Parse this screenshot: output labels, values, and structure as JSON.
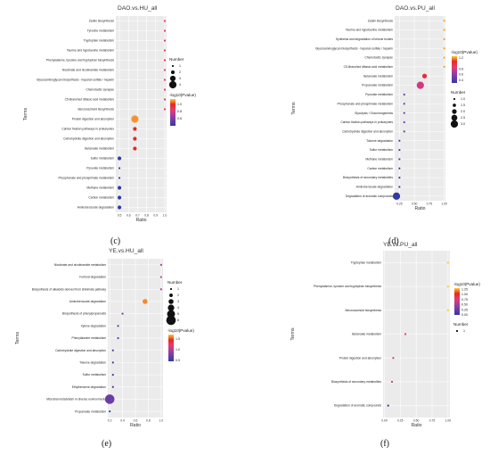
{
  "panel_letters": [
    "(c)",
    "(d)",
    "(e)",
    "(f)"
  ],
  "chart_data": [
    {
      "type": "scatter",
      "title": "DAO.vs.HU_all",
      "xlabel": "Ratio",
      "ylabel": "Terms",
      "xlim": [
        0.46,
        1.02
      ],
      "xticks": [
        "0.5",
        "0.6",
        "0.7",
        "0.8",
        "0.9",
        "1.0"
      ],
      "xtick_values": [
        0.5,
        0.6,
        0.7,
        0.8,
        0.9,
        1.0
      ],
      "terms": [
        "Zeatin biosynthesis",
        "Tyrosine metabolism",
        "Tryptophan metabolism",
        "Taurine and hypotaurine metabolism",
        "Phenylalanine, tyrosine and tryptophan biosynthesis",
        "Nicotinate and nicotinamide metabolism",
        "Glycosaminoglycan biosynthesis - heparan sulfate / heparin",
        "Chemotactic synapse",
        "C5-Branched dibasic acid metabolism",
        "Benzoxazinoid biosynthesis",
        "Protein digestion and absorption",
        "Carbon fixation pathways in prokaryotes",
        "Carbohydrate digestion and absorption",
        "Butanoate metabolism",
        "Sulfur metabolism",
        "Pyruvate metabolism",
        "Phosphonate and phosphinate metabolism",
        "Methane metabolism",
        "Carbon metabolism",
        "Aminobenzoate degradation"
      ],
      "ratio": [
        1.0,
        1.0,
        1.0,
        1.0,
        1.0,
        1.0,
        1.0,
        1.0,
        1.0,
        1.0,
        0.67,
        0.67,
        0.67,
        0.67,
        0.5,
        0.5,
        0.5,
        0.5,
        0.5,
        0.5
      ],
      "number": [
        1,
        1,
        1,
        1,
        1,
        1,
        1,
        1,
        1,
        1,
        4,
        2,
        2,
        2,
        2,
        1,
        1,
        2,
        2,
        2
      ],
      "neglog10p": [
        0.9,
        0.9,
        0.9,
        0.9,
        0.9,
        0.9,
        0.9,
        0.9,
        0.9,
        0.9,
        1.1,
        1.0,
        1.0,
        1.0,
        0.4,
        0.4,
        0.4,
        0.4,
        0.4,
        0.4
      ],
      "color_legend": {
        "title": "-log10(Pvalue)",
        "ticks": [
          "1.0",
          "0.8",
          "0.6"
        ],
        "tick_values": [
          1.0,
          0.8,
          0.6
        ],
        "range": [
          0.4,
          1.15
        ]
      },
      "size_legend": {
        "title": "Number",
        "labels": [
          "1",
          "2",
          "3",
          "4"
        ],
        "values": [
          1,
          2,
          3,
          4
        ],
        "order": "above-color"
      }
    },
    {
      "type": "scatter",
      "title": "DAO.vs.PU_all",
      "xlabel": "Ratio",
      "ylabel": "Terms",
      "xlim": [
        0.17,
        1.02
      ],
      "xticks": [
        "0.25",
        "0.50",
        "0.75",
        "1.00"
      ],
      "xtick_values": [
        0.25,
        0.5,
        0.75,
        1.0
      ],
      "terms": [
        "Zeatin biosynthesis",
        "Taurine and hypotaurine metabolism",
        "Synthesis and degradation of ketone bodies",
        "Glycosaminoglycan biosynthesis - heparan sulfate / heparin",
        "Chemotactic synapse",
        "C5-Branched dibasic acid metabolism",
        "Butanoate metabolism",
        "Propanoate metabolism",
        "Pyruvate metabolism",
        "Phosphonate and phosphinate metabolism",
        "Glycolysis / Gluconeogenesis",
        "Carbon fixation pathways in prokaryotes",
        "Carbohydrate digestion and absorption",
        "Toluene degradation",
        "Sulfur metabolism",
        "Methane metabolism",
        "Carbon metabolism",
        "Biosynthesis of secondary metabolites",
        "Aminobenzoate degradation",
        "Degradation of aromatic compounds"
      ],
      "ratio": [
        1.0,
        1.0,
        1.0,
        1.0,
        1.0,
        1.0,
        0.67,
        0.6,
        0.33,
        0.33,
        0.33,
        0.33,
        0.33,
        0.25,
        0.25,
        0.25,
        0.25,
        0.25,
        0.25,
        0.2
      ],
      "number": [
        1,
        1,
        1,
        1,
        1,
        1,
        2,
        3,
        1,
        1,
        1,
        1,
        1,
        1,
        1,
        1,
        1,
        1,
        1,
        3
      ],
      "neglog10p": [
        1.2,
        1.2,
        1.2,
        1.2,
        1.2,
        1.2,
        1.0,
        0.8,
        0.5,
        0.5,
        0.5,
        0.5,
        0.5,
        0.4,
        0.4,
        0.4,
        0.4,
        0.4,
        0.4,
        0.3
      ],
      "color_legend": {
        "title": "-log10(Pvalue)",
        "ticks": [
          "1.2",
          "0.8",
          "0.6",
          "0.4"
        ],
        "tick_values": [
          1.2,
          0.8,
          0.6,
          0.4
        ],
        "range": [
          0.3,
          1.25
        ]
      },
      "size_legend": {
        "title": "Number",
        "labels": [
          "1.0",
          "1.5",
          "2.0",
          "2.5",
          "3.0"
        ],
        "values": [
          1.0,
          1.5,
          2.0,
          2.5,
          3.0
        ],
        "order": "below-color"
      }
    },
    {
      "type": "scatter",
      "title": "YE.vs.HU_all",
      "xlabel": "Ratio",
      "ylabel": "Terms",
      "xlim": [
        0.17,
        1.03
      ],
      "xticks": [
        "0.2",
        "0.4",
        "0.6",
        "0.8",
        "1.0"
      ],
      "xtick_values": [
        0.2,
        0.4,
        0.6,
        0.8,
        1.0
      ],
      "terms": [
        "Nicotinate and nicotinamide metabolism",
        "Furfural degradation",
        "Biosynthesis of alkaloids derived from shikimate pathway",
        "Aminobenzoate degradation",
        "Biosynthesis of phenylpropanoids",
        "Xylene degradation",
        "Phenylalanine metabolism",
        "Carbohydrate digestion and absorption",
        "Toluene degradation",
        "Sulfur metabolism",
        "Ethylbenzene degradation",
        "Microbial metabolism in diverse environments",
        "Propanoate metabolism"
      ],
      "ratio": [
        1.0,
        1.0,
        1.0,
        0.75,
        0.4,
        0.33,
        0.33,
        0.25,
        0.25,
        0.25,
        0.25,
        0.2,
        0.2
      ],
      "number": [
        1,
        1,
        1,
        3,
        1,
        1,
        1,
        1,
        1,
        1,
        1,
        6,
        1
      ],
      "neglog10p": [
        1.0,
        1.0,
        1.0,
        1.6,
        0.8,
        0.6,
        0.6,
        0.5,
        0.5,
        0.5,
        0.5,
        0.7,
        0.5
      ],
      "color_legend": {
        "title": "-log10(Pvalue)",
        "ticks": [
          "1.5",
          "1.0",
          "0.5"
        ],
        "tick_values": [
          1.5,
          1.0,
          0.5
        ],
        "range": [
          0.45,
          1.7
        ]
      },
      "size_legend": {
        "title": "Number",
        "labels": [
          "1",
          "2",
          "3",
          "4",
          "5",
          "6"
        ],
        "values": [
          1,
          2,
          3,
          4,
          5,
          6
        ],
        "order": "above-color"
      }
    },
    {
      "type": "scatter",
      "title": "YE.vs.PU_all",
      "xlabel": "Ratio",
      "ylabel": "Terms",
      "xlim": [
        -0.02,
        1.03
      ],
      "xticks": [
        "0.00",
        "0.25",
        "0.50",
        "0.75",
        "1.00"
      ],
      "xtick_values": [
        0.0,
        0.25,
        0.5,
        0.75,
        1.0
      ],
      "terms": [
        "Tryptophan metabolism",
        "Phenylalanine, tyrosine and tryptophan biosynthesis",
        "Benzoxazinoid biosynthesis",
        "Butanoate metabolism",
        "Protein digestion and absorption",
        "Biosynthesis of secondary metabolites",
        "Degradation of aromatic compounds"
      ],
      "ratio": [
        1.0,
        1.0,
        1.0,
        0.33,
        0.14,
        0.12,
        0.06
      ],
      "number": [
        1,
        1,
        1,
        1,
        1,
        1,
        1
      ],
      "neglog10p": [
        1.3,
        1.3,
        1.3,
        0.8,
        0.7,
        0.65,
        0.0
      ],
      "color_legend": {
        "title": "-log10(Pvalue)",
        "ticks": [
          "1.25",
          "1.00",
          "0.75",
          "0.50",
          "0.25",
          "0.00"
        ],
        "tick_values": [
          1.25,
          1.0,
          0.75,
          0.5,
          0.25,
          0.0
        ],
        "range": [
          0.0,
          1.3
        ]
      },
      "size_legend": {
        "title": "Number",
        "labels": [
          "1"
        ],
        "values": [
          1
        ],
        "order": "below-color"
      }
    }
  ]
}
